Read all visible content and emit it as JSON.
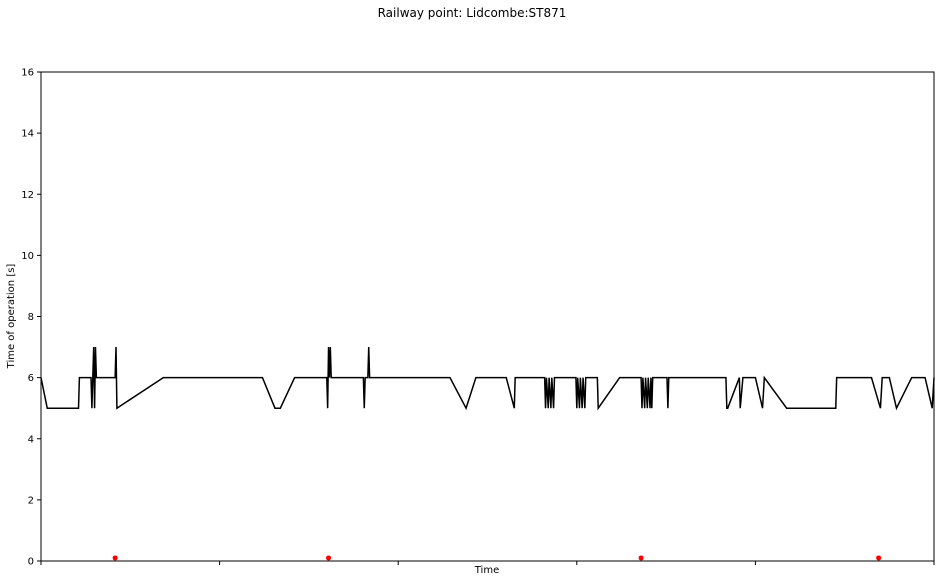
{
  "chart_data": {
    "type": "line",
    "title": "Railway point: Lidcombe:ST871",
    "xlabel": "Time",
    "ylabel": "Time of operation [s]",
    "ylim": [
      0,
      16
    ],
    "yticks": [
      0,
      2,
      4,
      6,
      8,
      10,
      12,
      14,
      16
    ],
    "xlim": [
      0,
      1
    ],
    "grid": false,
    "legend": "none",
    "x_tick_labels": "none",
    "colors": {
      "line": "#000000",
      "markers": "#ff0000",
      "axes": "#000000",
      "background": "#ffffff"
    },
    "series": [
      {
        "kind": "line",
        "points": [
          [
            0.0,
            6
          ],
          [
            0.007,
            5
          ],
          [
            0.042,
            5
          ],
          [
            0.043,
            6
          ],
          [
            0.056,
            6
          ],
          [
            0.057,
            5
          ],
          [
            0.058,
            6
          ],
          [
            0.059,
            7
          ],
          [
            0.06,
            5
          ],
          [
            0.061,
            7
          ],
          [
            0.062,
            6
          ],
          [
            0.083,
            6
          ],
          [
            0.084,
            7
          ],
          [
            0.085,
            5
          ],
          [
            0.137,
            6
          ],
          [
            0.248,
            6
          ],
          [
            0.262,
            5
          ],
          [
            0.268,
            5
          ],
          [
            0.284,
            6
          ],
          [
            0.32,
            6
          ],
          [
            0.321,
            5
          ],
          [
            0.322,
            7
          ],
          [
            0.323,
            6
          ],
          [
            0.324,
            7
          ],
          [
            0.325,
            6
          ],
          [
            0.361,
            6
          ],
          [
            0.362,
            5
          ],
          [
            0.363,
            6
          ],
          [
            0.366,
            6
          ],
          [
            0.367,
            7
          ],
          [
            0.368,
            6
          ],
          [
            0.458,
            6
          ],
          [
            0.476,
            5
          ],
          [
            0.487,
            6
          ],
          [
            0.521,
            6
          ],
          [
            0.53,
            5
          ],
          [
            0.531,
            6
          ],
          [
            0.564,
            6
          ],
          [
            0.565,
            5
          ],
          [
            0.566,
            6
          ],
          [
            0.568,
            5
          ],
          [
            0.569,
            6
          ],
          [
            0.571,
            5
          ],
          [
            0.572,
            6
          ],
          [
            0.574,
            5
          ],
          [
            0.575,
            6
          ],
          [
            0.599,
            6
          ],
          [
            0.6,
            5
          ],
          [
            0.601,
            6
          ],
          [
            0.603,
            5
          ],
          [
            0.604,
            6
          ],
          [
            0.606,
            5
          ],
          [
            0.607,
            6
          ],
          [
            0.609,
            5
          ],
          [
            0.61,
            6
          ],
          [
            0.623,
            6
          ],
          [
            0.624,
            5
          ],
          [
            0.648,
            6
          ],
          [
            0.672,
            6
          ],
          [
            0.673,
            5
          ],
          [
            0.674,
            6
          ],
          [
            0.676,
            5
          ],
          [
            0.677,
            6
          ],
          [
            0.679,
            5
          ],
          [
            0.68,
            6
          ],
          [
            0.682,
            5
          ],
          [
            0.683,
            6
          ],
          [
            0.684,
            5
          ],
          [
            0.685,
            6
          ],
          [
            0.701,
            6
          ],
          [
            0.702,
            5
          ],
          [
            0.703,
            6
          ],
          [
            0.767,
            6
          ],
          [
            0.768,
            5
          ],
          [
            0.769,
            5
          ],
          [
            0.782,
            6
          ],
          [
            0.783,
            5
          ],
          [
            0.786,
            6
          ],
          [
            0.8,
            6
          ],
          [
            0.808,
            5
          ],
          [
            0.81,
            6
          ],
          [
            0.835,
            5
          ],
          [
            0.89,
            5
          ],
          [
            0.891,
            6
          ],
          [
            0.93,
            6
          ],
          [
            0.94,
            5
          ],
          [
            0.942,
            6
          ],
          [
            0.95,
            6
          ],
          [
            0.958,
            5
          ],
          [
            0.975,
            6
          ],
          [
            0.99,
            6
          ],
          [
            0.998,
            5
          ],
          [
            1.0,
            6
          ]
        ]
      },
      {
        "kind": "markers",
        "points": [
          [
            0.083,
            0.1
          ],
          [
            0.322,
            0.1
          ],
          [
            0.672,
            0.1
          ],
          [
            0.938,
            0.1
          ]
        ]
      }
    ]
  }
}
